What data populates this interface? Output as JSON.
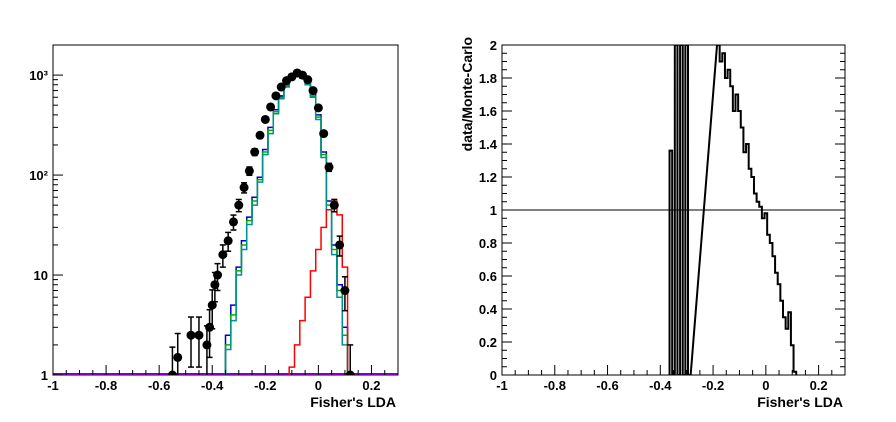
{
  "chart_data": [
    {
      "type": "line",
      "panel": "left",
      "xlabel": "Fisher's LDA",
      "ylabel": "",
      "xlim": [
        -1,
        0.3
      ],
      "ylim": [
        1,
        2000
      ],
      "yscale": "log",
      "x_ticks": [
        "-1",
        "-0.8",
        "-0.6",
        "-0.4",
        "-0.2",
        "0",
        "0.2"
      ],
      "x_tick_values": [
        -1,
        -0.8,
        -0.6,
        -0.4,
        -0.2,
        0,
        0.2
      ],
      "y_ticks": [
        "1",
        "10",
        "10²",
        "10³"
      ],
      "y_tick_values": [
        1,
        10,
        100,
        1000
      ],
      "series": [
        {
          "kind": "step",
          "color": "#0000cc",
          "x": [
            -0.34,
            -0.32,
            -0.3,
            -0.28,
            -0.26,
            -0.24,
            -0.22,
            -0.2,
            -0.18,
            -0.16,
            -0.14,
            -0.12,
            -0.1,
            -0.08,
            -0.06,
            -0.04,
            -0.02,
            0,
            0.02,
            0.04,
            0.06,
            0.08,
            0.1,
            0.12
          ],
          "y": [
            2.5,
            5,
            12,
            22,
            38,
            60,
            95,
            180,
            300,
            450,
            620,
            800,
            950,
            1020,
            980,
            860,
            650,
            400,
            170,
            55,
            20,
            8,
            3,
            1
          ]
        },
        {
          "kind": "step",
          "color": "#00b000",
          "x": [
            -0.34,
            -0.32,
            -0.3,
            -0.28,
            -0.26,
            -0.24,
            -0.22,
            -0.2,
            -0.18,
            -0.16,
            -0.14,
            -0.12,
            -0.1,
            -0.08,
            -0.06,
            -0.04,
            -0.02,
            0,
            0.02,
            0.04,
            0.06,
            0.08,
            0.1,
            0.12
          ],
          "y": [
            2,
            4,
            11,
            20,
            35,
            55,
            90,
            170,
            280,
            430,
            600,
            780,
            920,
            990,
            950,
            830,
            620,
            380,
            160,
            50,
            18,
            7,
            2.5,
            1
          ]
        },
        {
          "kind": "step",
          "color": "#009090",
          "x": [
            -0.34,
            -0.32,
            -0.3,
            -0.28,
            -0.26,
            -0.24,
            -0.22,
            -0.2,
            -0.18,
            -0.16,
            -0.14,
            -0.12,
            -0.1,
            -0.08,
            -0.06,
            -0.04,
            -0.02,
            0,
            0.02,
            0.04,
            0.06,
            0.08,
            0.1,
            0.12
          ],
          "y": [
            1.8,
            3.5,
            10,
            18,
            32,
            50,
            85,
            160,
            260,
            410,
            580,
            760,
            900,
            970,
            930,
            800,
            600,
            360,
            150,
            45,
            16,
            6,
            2,
            1
          ]
        },
        {
          "kind": "step",
          "color": "#ff0000",
          "x": [
            -0.1,
            -0.08,
            -0.06,
            -0.04,
            -0.02,
            0,
            0.02,
            0.04,
            0.06,
            0.08,
            0.1,
            0.12
          ],
          "y": [
            1.2,
            2,
            3.5,
            6,
            11,
            18,
            30,
            45,
            55,
            40,
            12,
            1
          ]
        },
        {
          "kind": "points",
          "color": "#000000",
          "x": [
            -0.55,
            -0.53,
            -0.48,
            -0.45,
            -0.42,
            -0.41,
            -0.4,
            -0.39,
            -0.38,
            -0.36,
            -0.34,
            -0.32,
            -0.3,
            -0.28,
            -0.26,
            -0.24,
            -0.22,
            -0.2,
            -0.18,
            -0.16,
            -0.14,
            -0.12,
            -0.1,
            -0.08,
            -0.06,
            -0.04,
            -0.02,
            0,
            0.02,
            0.04,
            0.06,
            0.08,
            0.1,
            0.12
          ],
          "y": [
            1,
            1.5,
            2.5,
            2.5,
            2,
            3,
            5,
            8,
            10,
            16,
            22,
            34,
            50,
            75,
            110,
            170,
            250,
            360,
            480,
            620,
            760,
            880,
            960,
            1050,
            1000,
            900,
            700,
            470,
            260,
            120,
            50,
            20,
            7,
            1
          ],
          "err": [
            0.9,
            1.1,
            1.3,
            1.3,
            1.1,
            1.5,
            2.1,
            2.6,
            3,
            4,
            4.7,
            5.8,
            7,
            8.7,
            10.5,
            13,
            15.8,
            19,
            21.9,
            24.9,
            27.6,
            29.7,
            31,
            32.4,
            31.6,
            30,
            26.5,
            21.7,
            16.1,
            11,
            7.1,
            4.5,
            2.6,
            1
          ]
        }
      ]
    },
    {
      "type": "line",
      "panel": "right",
      "xlabel": "Fisher's LDA",
      "ylabel": "data/Monte-Carlo",
      "xlim": [
        -1,
        0.3
      ],
      "ylim": [
        0,
        2
      ],
      "yscale": "linear",
      "x_ticks": [
        "-1",
        "-0.8",
        "-0.6",
        "-0.4",
        "-0.2",
        "0",
        "0.2"
      ],
      "x_tick_values": [
        -1,
        -0.8,
        -0.6,
        -0.4,
        -0.2,
        0,
        0.2
      ],
      "y_ticks": [
        "0",
        "0.2",
        "0.4",
        "0.6",
        "0.8",
        "1",
        "1.2",
        "1.4",
        "1.6",
        "1.8",
        "2"
      ],
      "y_tick_values": [
        0,
        0.2,
        0.4,
        0.6,
        0.8,
        1,
        1.2,
        1.4,
        1.6,
        1.8,
        2
      ],
      "reference_line": 1,
      "series": [
        {
          "kind": "step",
          "color": "#000000",
          "x": [
            -0.36,
            -0.35,
            -0.34,
            -0.33,
            -0.32,
            -0.31,
            -0.3,
            -0.29,
            -0.18,
            -0.17,
            -0.16,
            -0.15,
            -0.14,
            -0.13,
            -0.12,
            -0.11,
            -0.1,
            -0.09,
            -0.08,
            -0.07,
            -0.06,
            -0.05,
            -0.04,
            -0.03,
            -0.02,
            -0.01,
            0,
            0.01,
            0.02,
            0.03,
            0.04,
            0.05,
            0.06,
            0.07,
            0.08,
            0.09,
            0.1,
            0.11
          ],
          "y": [
            1.36,
            0,
            2,
            0,
            2,
            0,
            2,
            0,
            2,
            1.9,
            1.95,
            1.8,
            1.85,
            1.75,
            1.6,
            1.7,
            1.6,
            1.5,
            1.35,
            1.4,
            1.25,
            1.2,
            1.1,
            1.05,
            1.02,
            0.95,
            0.98,
            0.85,
            0.8,
            0.72,
            0.62,
            0.55,
            0.45,
            0.35,
            0.28,
            0.38,
            0.18,
            0.02
          ]
        }
      ]
    }
  ]
}
